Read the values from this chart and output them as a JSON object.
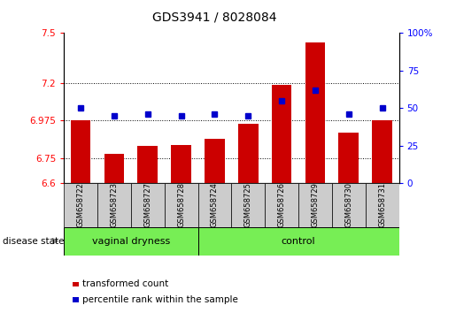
{
  "title": "GDS3941 / 8028084",
  "samples": [
    "GSM658722",
    "GSM658723",
    "GSM658727",
    "GSM658728",
    "GSM658724",
    "GSM658725",
    "GSM658726",
    "GSM658729",
    "GSM658730",
    "GSM658731"
  ],
  "red_values": [
    6.975,
    6.775,
    6.825,
    6.83,
    6.865,
    6.955,
    7.19,
    7.44,
    6.9,
    6.975
  ],
  "blue_values": [
    50,
    45,
    46,
    45,
    46,
    45,
    55,
    62,
    46,
    50
  ],
  "ylim_left": [
    6.6,
    7.5
  ],
  "ylim_right": [
    0,
    100
  ],
  "yticks_left": [
    6.6,
    6.75,
    6.975,
    7.2,
    7.5
  ],
  "yticks_right": [
    0,
    25,
    50,
    75,
    100
  ],
  "ytick_labels_left": [
    "6.6",
    "6.75",
    "6.975",
    "7.2",
    "7.5"
  ],
  "ytick_labels_right": [
    "0",
    "25",
    "50",
    "75",
    "100%"
  ],
  "hlines": [
    6.75,
    6.975,
    7.2
  ],
  "n_vaginal": 4,
  "n_control": 6,
  "bar_color": "#cc0000",
  "dot_color": "#0000cc",
  "bar_bottom": 6.6,
  "group_label_vaginal": "vaginal dryness",
  "group_label_control": "control",
  "disease_label": "disease state",
  "legend_red": "transformed count",
  "legend_blue": "percentile rank within the sample",
  "group_box_color": "#77ee55",
  "sample_box_color": "#cccccc",
  "bar_width": 0.6
}
